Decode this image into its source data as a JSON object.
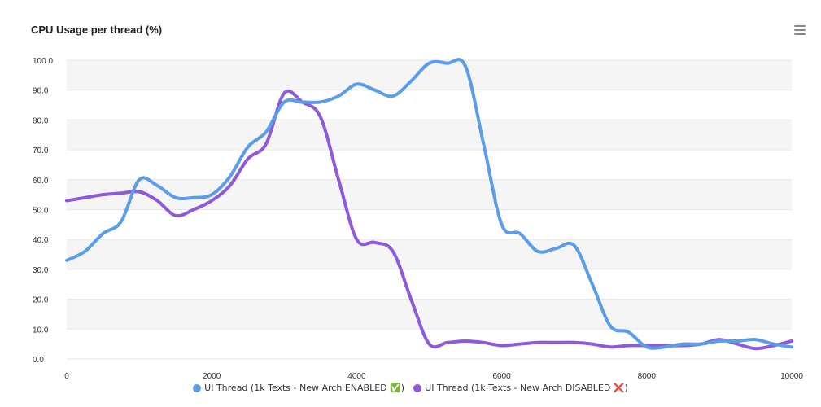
{
  "header": {
    "menu_icon": "hamburger-menu-icon"
  },
  "colors": {
    "series_enabled": "#5b9de8",
    "series_disabled": "#8f5ad9",
    "band": "#f5f5f5",
    "grid": "#e6e6e6",
    "axis_text": "#333333"
  },
  "chart_data": {
    "type": "line",
    "title": "CPU Usage per thread (%)",
    "xlabel": "",
    "ylabel": "",
    "xlim": [
      0,
      10000
    ],
    "ylim": [
      0,
      100
    ],
    "x_ticks": [
      "0",
      "2000",
      "4000",
      "6000",
      "8000",
      "10000"
    ],
    "y_ticks": [
      "0.0",
      "10.0",
      "20.0",
      "30.0",
      "40.0",
      "50.0",
      "60.0",
      "70.0",
      "80.0",
      "90.0",
      "100.0"
    ],
    "grid": true,
    "legend_position": "bottom-center",
    "x": [
      0,
      250,
      500,
      750,
      1000,
      1250,
      1500,
      1750,
      2000,
      2250,
      2500,
      2750,
      3000,
      3250,
      3500,
      3750,
      4000,
      4250,
      4500,
      4750,
      5000,
      5250,
      5500,
      5750,
      6000,
      6250,
      6500,
      6750,
      7000,
      7250,
      7500,
      7750,
      8000,
      8250,
      8500,
      8750,
      9000,
      9250,
      9500,
      9750,
      10000
    ],
    "series": [
      {
        "name": "UI Thread (1k Texts - New Arch ENABLED ✅)",
        "values": [
          33,
          36,
          42,
          46,
          60,
          58,
          54,
          54,
          55,
          61,
          71,
          76,
          86,
          86,
          86,
          88,
          92,
          90,
          88,
          93,
          99,
          99,
          98,
          72,
          45,
          42,
          36,
          37,
          38,
          25,
          11,
          9,
          4,
          4,
          5,
          5,
          6,
          6,
          6.5,
          5,
          4
        ]
      },
      {
        "name": "UI Thread (1k Texts - New Arch DISABLED ❌)",
        "values": [
          53,
          54,
          55,
          55.5,
          56,
          53,
          48,
          50,
          53,
          58,
          67,
          72,
          89,
          86,
          81,
          60,
          40,
          39,
          36,
          20,
          5,
          5.5,
          6,
          5.5,
          4.5,
          5,
          5.5,
          5.5,
          5.5,
          5,
          4,
          4.5,
          4.5,
          4.5,
          4.5,
          5,
          6.5,
          5,
          3.5,
          4.5,
          6
        ]
      }
    ]
  }
}
